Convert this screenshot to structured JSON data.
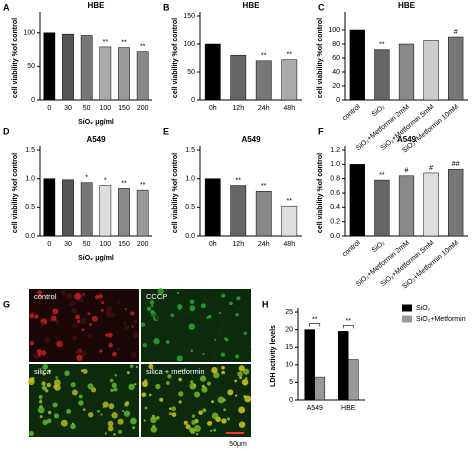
{
  "chart_data": [
    {
      "type": "bar",
      "panel": "A",
      "title": "HBE",
      "y_label": "cell viability %of control",
      "x_label": "SiO₂ μg/ml",
      "categories": [
        "0",
        "30",
        "50",
        "100",
        "150",
        "200"
      ],
      "values": [
        100,
        98,
        96,
        79,
        78,
        72
      ],
      "annotations": [
        null,
        null,
        null,
        "**",
        "**",
        "**"
      ],
      "colors": [
        "#000000",
        "#555555",
        "#777777",
        "#aaaaaa",
        "#999999",
        "#888888"
      ],
      "ylim": [
        0,
        125
      ],
      "yticks": [
        0,
        50,
        100
      ]
    },
    {
      "type": "bar",
      "panel": "B",
      "title": "HBE",
      "y_label": "cell viability %of control",
      "categories": [
        "0h",
        "12h",
        "24h",
        "48h"
      ],
      "values": [
        100,
        80,
        70,
        72
      ],
      "annotations": [
        null,
        null,
        "**",
        "**"
      ],
      "colors": [
        "#000000",
        "#666666",
        "#777777",
        "#aaaaaa"
      ],
      "ylim": [
        0,
        150
      ],
      "yticks": [
        0,
        50,
        100,
        150
      ]
    },
    {
      "type": "bar",
      "panel": "C",
      "title": "HBE",
      "y_label": "cell viability %of control",
      "rotate_labels": true,
      "categories": [
        "control",
        "SiO₂",
        "SiO₂+Metformin 2mM",
        "SiO₂+Metformin 5mM",
        "SiO₂+Metformin 10mM"
      ],
      "values": [
        100,
        72,
        80,
        85,
        90
      ],
      "annotations": [
        null,
        "**",
        null,
        null,
        "#"
      ],
      "colors": [
        "#000000",
        "#666666",
        "#888888",
        "#cccccc",
        "#777777"
      ],
      "ylim": [
        0,
        120
      ],
      "yticks": [
        0,
        20,
        40,
        60,
        80,
        100
      ]
    },
    {
      "type": "bar",
      "panel": "D",
      "title": "A549",
      "y_label": "cell viability %of control",
      "x_label": "SiO₂ μg/ml",
      "categories": [
        "0",
        "30",
        "50",
        "100",
        "150",
        "200"
      ],
      "values": [
        1.0,
        0.98,
        0.93,
        0.88,
        0.83,
        0.8
      ],
      "annotations": [
        null,
        null,
        "*",
        "*",
        "**",
        "**"
      ],
      "colors": [
        "#000000",
        "#555555",
        "#777777",
        "#dddddd",
        "#888888",
        "#999999"
      ],
      "ylim": [
        0,
        1.5
      ],
      "yticks": [
        {
          "value": 0,
          "label": "0.0"
        },
        0.5,
        {
          "value": 1,
          "label": "1.0"
        },
        1.5
      ]
    },
    {
      "type": "bar",
      "panel": "E",
      "title": "A549",
      "y_label": "cell viability %of control",
      "categories": [
        "0h",
        "12h",
        "24h",
        "48h"
      ],
      "values": [
        1.0,
        0.88,
        0.78,
        0.52
      ],
      "annotations": [
        null,
        "**",
        "**",
        "**"
      ],
      "colors": [
        "#000000",
        "#666666",
        "#888888",
        "#dddddd"
      ],
      "ylim": [
        0,
        1.5
      ],
      "yticks": [
        {
          "value": 0,
          "label": "0.0"
        },
        0.5,
        {
          "value": 1,
          "label": "1.0"
        },
        1.5
      ]
    },
    {
      "type": "bar",
      "panel": "F",
      "title": "A549",
      "y_label": "cell viability %of control",
      "rotate_labels": true,
      "categories": [
        "control",
        "SiO₂",
        "SiO₂+Metformin 2mM",
        "SiO₂+Metformin 5mM",
        "SiO₂+Metformin 10mM"
      ],
      "values": [
        1.0,
        0.78,
        0.84,
        0.88,
        0.93
      ],
      "annotations": [
        null,
        "**",
        "#",
        "#",
        "##"
      ],
      "colors": [
        "#000000",
        "#666666",
        "#888888",
        "#dddddd",
        "#777777"
      ],
      "ylim": [
        0,
        1.2
      ],
      "yticks": [
        {
          "value": 0,
          "label": "0.0"
        },
        0.2,
        0.4,
        0.6,
        0.8,
        {
          "value": 1,
          "label": "1.0"
        },
        1.2
      ]
    },
    {
      "type": "image",
      "panel": "G",
      "labels": [
        "control",
        "CCCP",
        "silica",
        "silica + metformin"
      ],
      "scale_bar": "50μm"
    },
    {
      "type": "grouped-bar",
      "panel": "H",
      "y_label": "LDH activity levels",
      "categories": [
        "A549",
        "HBE"
      ],
      "series": [
        {
          "name": "SiO₂",
          "color": "#000000",
          "values": [
            20,
            19.5
          ]
        },
        {
          "name": "SiO₂+Metformin",
          "color": "#999999",
          "values": [
            6.5,
            11.5
          ]
        }
      ],
      "annotations": [
        "**",
        "**"
      ],
      "ylim": [
        0,
        25
      ],
      "yticks": [
        0,
        5,
        10,
        15,
        20,
        25
      ]
    }
  ]
}
